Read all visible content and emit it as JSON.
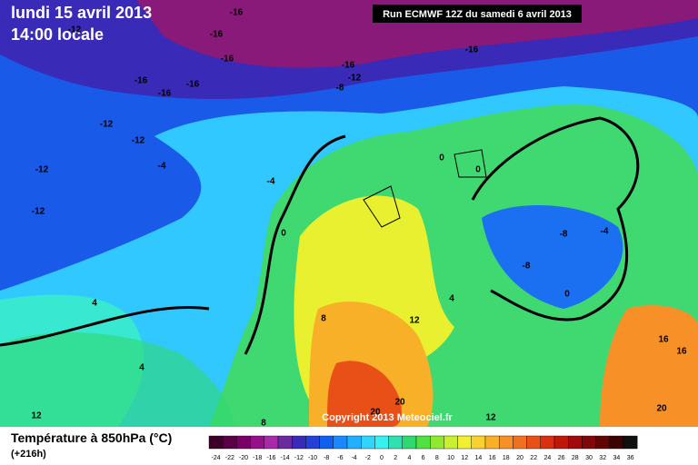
{
  "header": {
    "date": "lundi 15 avril 2013",
    "time": "14:00 locale",
    "run": "Run ECMWF 12Z du samedi 6 avril 2013"
  },
  "copyright": "Copyright 2013 Meteociel.fr",
  "contour_labels": [
    -16,
    -12,
    -16,
    -16,
    -16,
    -16,
    -16,
    -16,
    -12,
    -8,
    -16,
    -12,
    -12,
    -4,
    -12,
    -12,
    -4,
    0,
    0,
    0,
    -8,
    -4,
    -8,
    0,
    4,
    4,
    8,
    12,
    4,
    16,
    16,
    20,
    20,
    12,
    8,
    12,
    20
  ],
  "legend": {
    "title": "Température à 850hPa (°C)",
    "subtitle": "(+216h)",
    "values": [
      -24,
      -22,
      -20,
      -18,
      -16,
      -14,
      -12,
      -10,
      -8,
      -6,
      -4,
      -2,
      0,
      2,
      4,
      6,
      8,
      10,
      12,
      14,
      16,
      18,
      20,
      22,
      24,
      26,
      28,
      30,
      32,
      34,
      36
    ],
    "colors": [
      "#3c0028",
      "#5a0046",
      "#7a0066",
      "#96108c",
      "#a82aa8",
      "#6a2a9e",
      "#3a2ab8",
      "#2440d8",
      "#1060f0",
      "#1a88ff",
      "#20b0ff",
      "#30d4ff",
      "#38f0f0",
      "#30e0b0",
      "#30d870",
      "#50e040",
      "#90e830",
      "#c8f030",
      "#f0f030",
      "#f8d030",
      "#f8b028",
      "#f89028",
      "#f07020",
      "#e85018",
      "#d83010",
      "#c01808",
      "#a00a0a",
      "#800808",
      "#600404",
      "#3a0202",
      "#101010"
    ]
  }
}
